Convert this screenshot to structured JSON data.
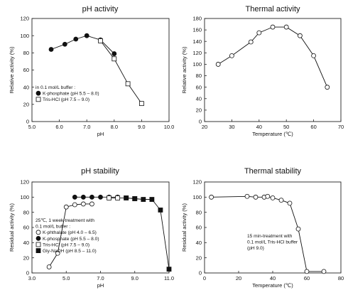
{
  "chart_data": [
    {
      "type": "line",
      "title": "pH activity",
      "xlabel": "pH",
      "ylabel": "Relative activity (%)",
      "xlim": [
        5.0,
        10.0
      ],
      "ylim": [
        0,
        120
      ],
      "xticks": [
        "5.0",
        "6.0",
        "7.0",
        "8.0",
        "9.0",
        "10.0"
      ],
      "yticks": [
        "0",
        "20",
        "40",
        "60",
        "80",
        "100",
        "120"
      ],
      "legend_title": "in 0.1 mol/L buffer :",
      "legend_position": "lower-left",
      "series": [
        {
          "name": "K-phosphate (pH 5.5 – 8.0)",
          "marker": "filled-circle",
          "x": [
            5.7,
            6.2,
            6.6,
            7.0,
            7.5,
            8.0
          ],
          "y": [
            84,
            90,
            96,
            100,
            95,
            79
          ]
        },
        {
          "name": "Tris-HCl (pH 7.5 – 9.0)",
          "marker": "open-square",
          "x": [
            7.5,
            8.0,
            8.5,
            9.0
          ],
          "y": [
            94,
            73,
            44,
            21
          ]
        }
      ]
    },
    {
      "type": "line",
      "title": "Thermal activity",
      "xlabel": "Temperature (℃)",
      "ylabel": "Relative activity (%)",
      "xlim": [
        20,
        70
      ],
      "ylim": [
        0,
        180
      ],
      "xticks": [
        "20",
        "30",
        "40",
        "50",
        "60",
        "70"
      ],
      "yticks": [
        "0",
        "20",
        "40",
        "60",
        "80",
        "100",
        "120",
        "140",
        "160",
        "180"
      ],
      "series": [
        {
          "marker": "open-circle",
          "x": [
            25,
            30,
            37,
            40,
            45,
            50,
            55,
            60,
            65
          ],
          "y": [
            100,
            115,
            139,
            155,
            165,
            165,
            150,
            115,
            60
          ]
        }
      ]
    },
    {
      "type": "line",
      "title": "pH stability",
      "xlabel": "pH",
      "ylabel": "Residual activity (%)",
      "xlim": [
        3.0,
        11.0
      ],
      "ylim": [
        0,
        120
      ],
      "xticks": [
        "3.0",
        "5.0",
        "7.0",
        "9.0",
        "11.0"
      ],
      "yticks": [
        "0",
        "20",
        "40",
        "60",
        "80",
        "100",
        "120"
      ],
      "legend_title": "25℃, 1 week-treatment with\n0.1 mol/L buffer :",
      "legend_position": "lower-left",
      "series": [
        {
          "name": "K-phthalate (pH 4.0 – 6.5)",
          "marker": "open-circle",
          "x": [
            4.0,
            4.5,
            5.0,
            5.5,
            6.0,
            6.5
          ],
          "y": [
            8,
            26,
            87,
            90,
            91,
            91
          ]
        },
        {
          "name": "K-phosphate (pH 5.5 – 8.0)",
          "marker": "filled-circle",
          "x": [
            5.5,
            6.0,
            6.5,
            7.0,
            7.5,
            8.0
          ],
          "y": [
            100,
            100,
            100,
            100,
            100,
            100
          ]
        },
        {
          "name": "Tris-HCl (pH 7.5 – 9.0)",
          "marker": "open-square",
          "x": [
            7.5,
            8.0,
            8.5,
            9.0
          ],
          "y": [
            99,
            99,
            99,
            98
          ]
        },
        {
          "name": "Gly-NaOH (pH 8.5 – 11.0)",
          "marker": "filled-square",
          "x": [
            8.5,
            9.0,
            9.5,
            10.0,
            10.5,
            11.0
          ],
          "y": [
            99,
            98,
            97,
            97,
            83,
            5
          ]
        }
      ]
    },
    {
      "type": "line",
      "title": "Thermal stability",
      "xlabel": "Temperature (℃)",
      "ylabel": "Residual activity (%)",
      "xlim": [
        0,
        80
      ],
      "ylim": [
        0,
        120
      ],
      "xticks": [
        "0",
        "20",
        "40",
        "60",
        "80"
      ],
      "yticks": [
        "0",
        "20",
        "40",
        "60",
        "80",
        "100",
        "120"
      ],
      "annotation": "15 min-treatment with\n0.1 mol/L Tris-HCl buffer\n(pH 9.0)",
      "series": [
        {
          "marker": "open-circle",
          "x": [
            4,
            25,
            30,
            35,
            37,
            40,
            45,
            50,
            55,
            60,
            70
          ],
          "y": [
            100,
            101,
            100,
            100,
            101,
            99,
            96,
            92,
            58,
            2,
            2
          ]
        }
      ]
    }
  ]
}
